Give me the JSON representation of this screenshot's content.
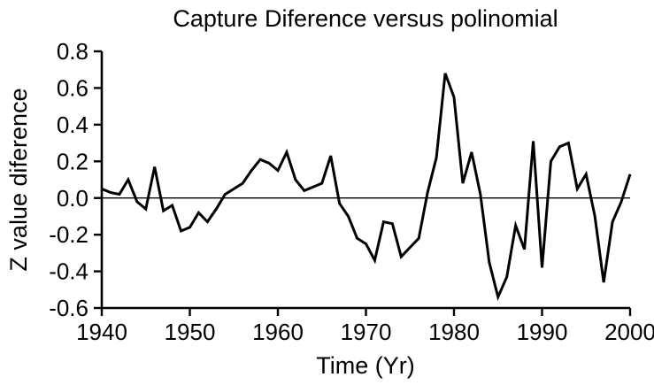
{
  "chart_data": {
    "type": "line",
    "title": "Capture Diference versus polinomial",
    "xlabel": "Time (Yr)",
    "ylabel": "Z value diference",
    "xlim": [
      1940,
      2000
    ],
    "ylim": [
      -0.6,
      0.8
    ],
    "xtick_step": 10,
    "ytick_step": 0.2,
    "grid": false,
    "zero_reference_line": true,
    "legend": "none",
    "line_color": "#000000",
    "axis_color": "#000000",
    "x": [
      1940,
      1941,
      1942,
      1943,
      1944,
      1945,
      1946,
      1947,
      1948,
      1949,
      1950,
      1951,
      1952,
      1953,
      1954,
      1955,
      1956,
      1957,
      1958,
      1959,
      1960,
      1961,
      1962,
      1963,
      1964,
      1965,
      1966,
      1967,
      1968,
      1969,
      1970,
      1971,
      1972,
      1973,
      1974,
      1975,
      1976,
      1977,
      1978,
      1979,
      1980,
      1981,
      1982,
      1983,
      1984,
      1985,
      1986,
      1987,
      1988,
      1989,
      1990,
      1991,
      1992,
      1993,
      1994,
      1995,
      1996,
      1997,
      1998,
      1999,
      2000
    ],
    "values": [
      0.05,
      0.03,
      0.02,
      0.1,
      -0.02,
      -0.06,
      0.17,
      -0.07,
      -0.04,
      -0.18,
      -0.16,
      -0.08,
      -0.13,
      -0.06,
      0.02,
      0.05,
      0.08,
      0.15,
      0.21,
      0.19,
      0.15,
      0.25,
      0.1,
      0.04,
      0.06,
      0.08,
      0.23,
      -0.03,
      -0.1,
      -0.22,
      -0.25,
      -0.34,
      -0.13,
      -0.14,
      -0.32,
      -0.27,
      -0.22,
      0.03,
      0.22,
      0.68,
      0.55,
      0.08,
      0.25,
      0.02,
      -0.35,
      -0.54,
      -0.43,
      -0.15,
      -0.28,
      0.31,
      -0.38,
      0.2,
      0.28,
      0.3,
      0.05,
      0.13,
      -0.1,
      -0.46,
      -0.13,
      -0.02,
      0.13
    ]
  }
}
